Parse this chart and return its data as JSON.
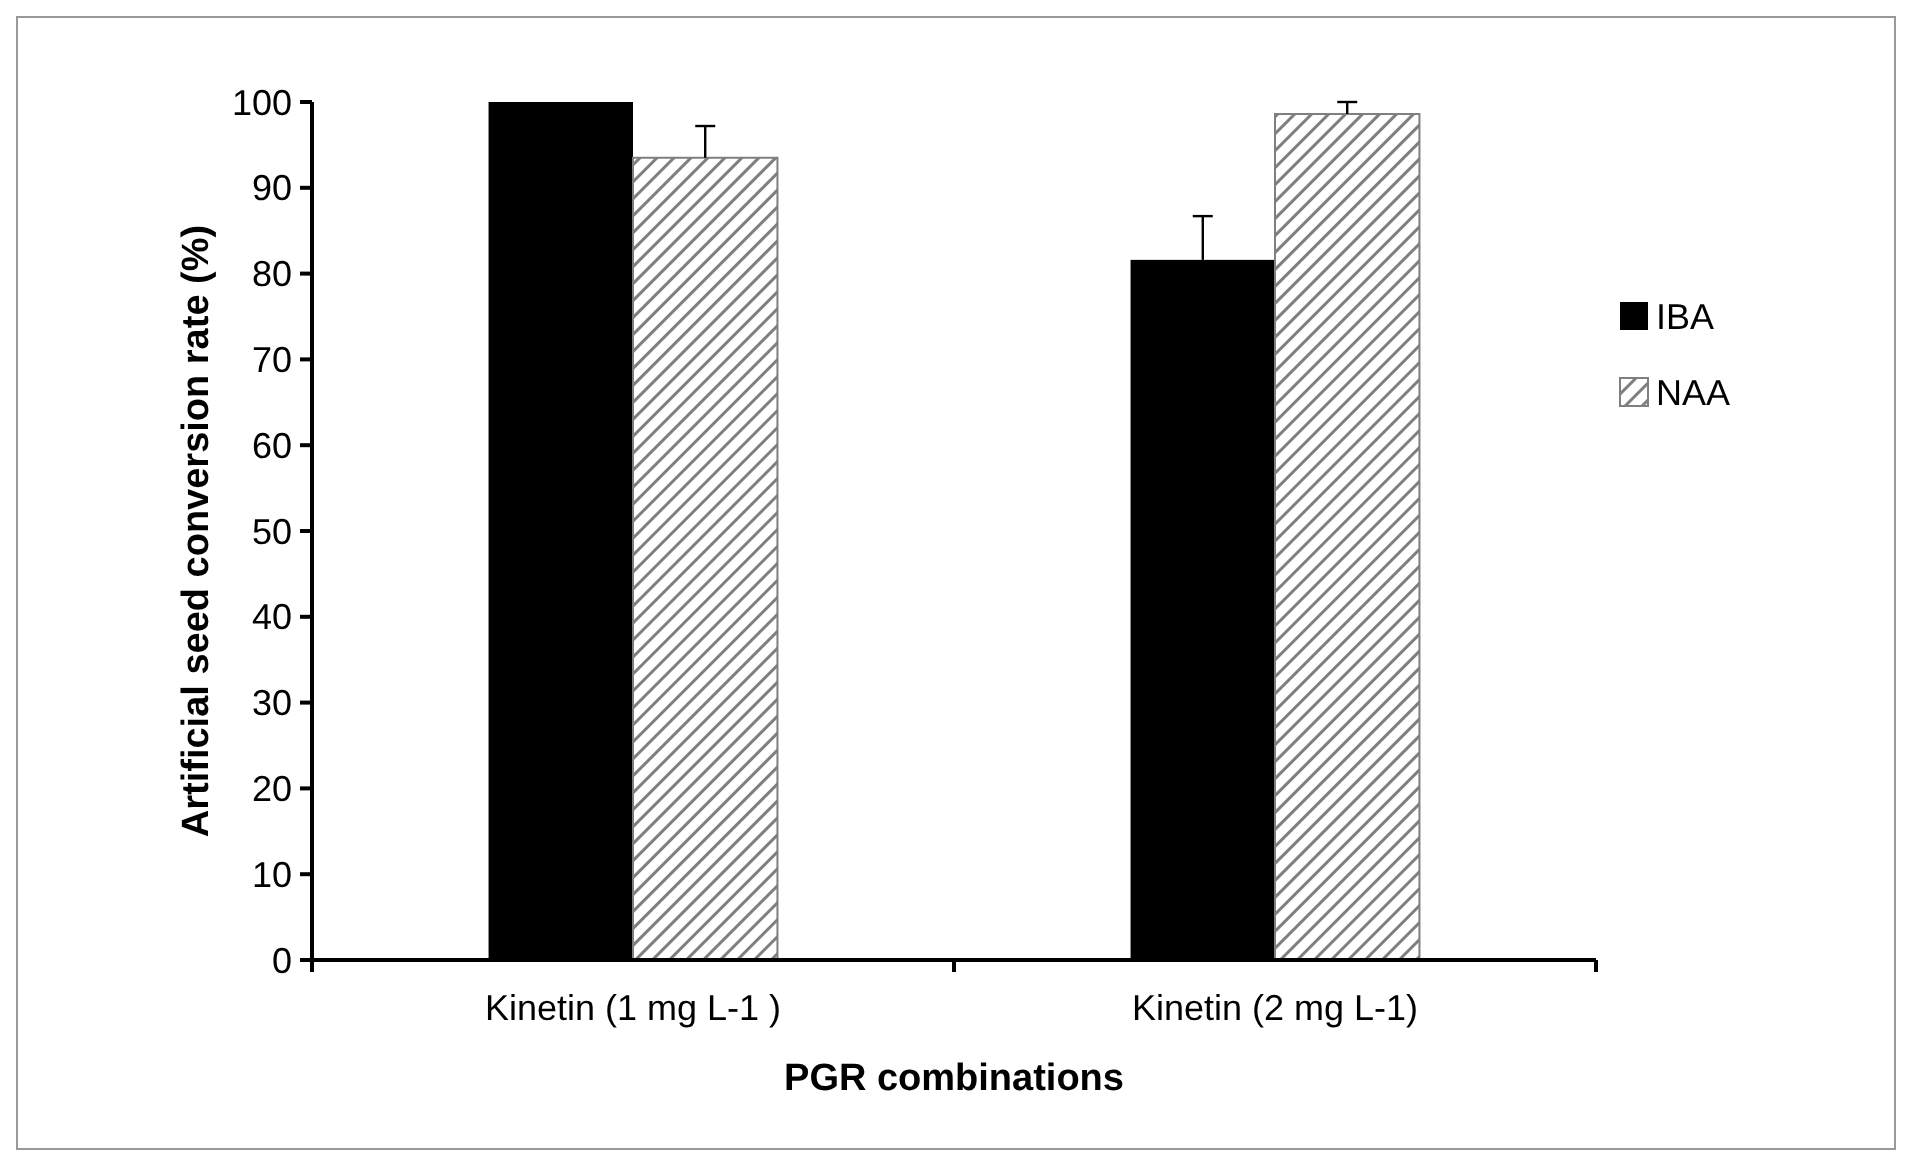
{
  "chart_data": {
    "type": "bar",
    "xlabel": "PGR combinations",
    "ylabel": "Artificial seed conversion rate (%)",
    "categories": [
      "Kinetin (1 mg L-1 )",
      "Kinetin (2 mg L-1)"
    ],
    "series": [
      {
        "name": "IBA",
        "color": "#000000",
        "values": [
          100,
          81.6
        ],
        "errors": [
          null,
          5.1
        ]
      },
      {
        "name": "NAA",
        "color": "#7f7f7f",
        "values": [
          93.5,
          98.6
        ],
        "errors": [
          3.7,
          1.4
        ]
      }
    ],
    "ylim": [
      0,
      100
    ],
    "yticks": [
      0,
      10,
      20,
      30,
      40,
      50,
      60,
      70,
      80,
      90,
      100
    ],
    "grid": false,
    "legend": "right"
  }
}
